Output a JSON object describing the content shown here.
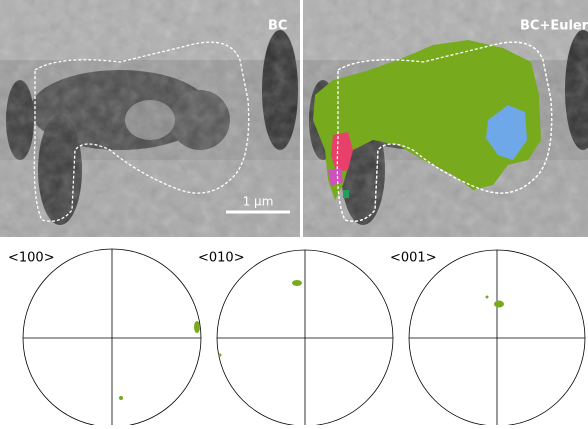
{
  "panels": [
    {
      "label": "BC",
      "scale_bar": "1 µm"
    },
    {
      "label": "BC+Euler"
    }
  ],
  "pole_figures": [
    {
      "label": "<100>"
    },
    {
      "label": "<010>"
    },
    {
      "label": "<001>"
    }
  ]
}
